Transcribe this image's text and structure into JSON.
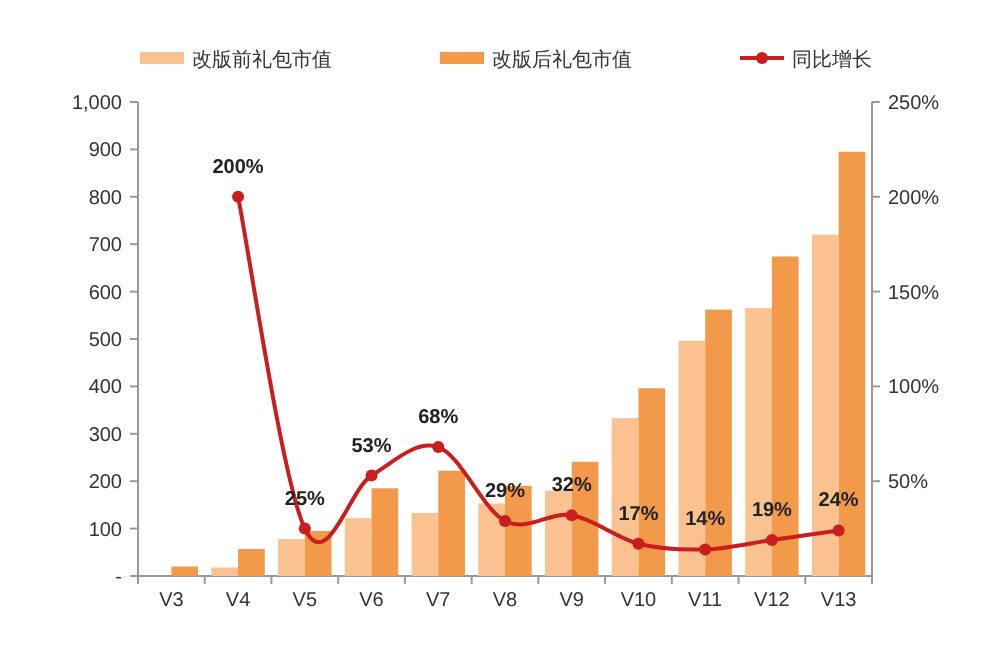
{
  "chart_data": {
    "type": "bar",
    "categories": [
      "V3",
      "V4",
      "V5",
      "V6",
      "V7",
      "V8",
      "V9",
      "V10",
      "V11",
      "V12",
      "V13"
    ],
    "series": [
      {
        "name": "改版前礼包市值",
        "color": "#f9c290",
        "values": [
          null,
          18,
          78,
          122,
          133,
          153,
          180,
          333,
          496,
          565,
          720
        ]
      },
      {
        "name": "改版后礼包市值",
        "color": "#f29a4a",
        "values": [
          20,
          57,
          95,
          185,
          222,
          190,
          241,
          396,
          562,
          674,
          895
        ]
      },
      {
        "name": "同比增长",
        "type": "line",
        "axis": "y2",
        "color": "#c81e1e",
        "marker": "circle",
        "values": [
          null,
          200,
          25,
          53,
          68,
          29,
          32,
          17,
          14,
          19,
          24
        ],
        "value_labels": [
          null,
          "200%",
          "25%",
          "53%",
          "68%",
          "29%",
          "32%",
          "17%",
          "14%",
          "19%",
          "24%"
        ]
      }
    ],
    "ylim": [
      0,
      1000
    ],
    "yticks": [
      {
        "value": 0,
        "label": "-"
      },
      100,
      200,
      300,
      400,
      500,
      600,
      700,
      800,
      900,
      {
        "value": 1000,
        "label": "1,000"
      }
    ],
    "y2lim": [
      0,
      250
    ],
    "y2ticks": [
      {
        "value": 50,
        "label": "50%"
      },
      {
        "value": 100,
        "label": "100%"
      },
      {
        "value": 150,
        "label": "150%"
      },
      {
        "value": 200,
        "label": "200%"
      },
      {
        "value": 250,
        "label": "250%"
      }
    ],
    "legend": "top"
  }
}
